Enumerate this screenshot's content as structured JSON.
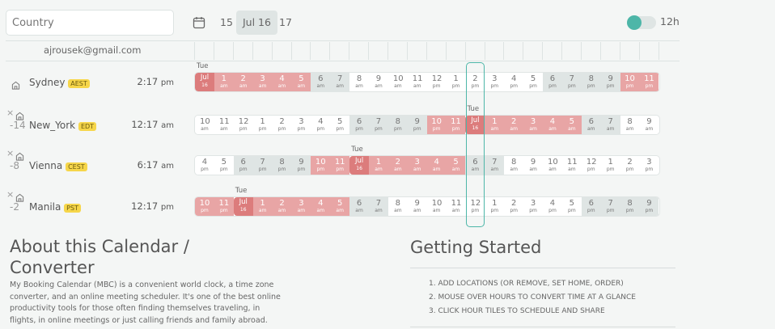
{
  "search": {
    "placeholder": "Country"
  },
  "dates": {
    "prev": "15",
    "current": "Jul 16",
    "next": "17"
  },
  "toggle": {
    "label": "12h",
    "on": true
  },
  "user": {
    "email": "ajrousek@gmail.com"
  },
  "colors": {
    "night": "#e8a5a5",
    "date": "#dc7c7c",
    "twilight": "#dfe5e4",
    "day": "#ffffff",
    "accent": "#4db6a8",
    "badge": "#f6d64a"
  },
  "highlight_column": 14,
  "locations": [
    {
      "name": "Sydney",
      "tz": "AEST",
      "offset": "",
      "time": "2:17",
      "ampm": "pm",
      "home": true,
      "day_label": "Tue",
      "cells": [
        [
          "Jul",
          "16",
          "date"
        ],
        [
          "1",
          "am",
          "night"
        ],
        [
          "2",
          "am",
          "night"
        ],
        [
          "3",
          "am",
          "night"
        ],
        [
          "4",
          "am",
          "night"
        ],
        [
          "5",
          "am",
          "night"
        ],
        [
          "6",
          "am",
          "gray"
        ],
        [
          "7",
          "am",
          "gray"
        ],
        [
          "8",
          "am",
          "day"
        ],
        [
          "9",
          "am",
          "day"
        ],
        [
          "10",
          "am",
          "day"
        ],
        [
          "11",
          "am",
          "day"
        ],
        [
          "12",
          "pm",
          "day"
        ],
        [
          "1",
          "pm",
          "day"
        ],
        [
          "2",
          "pm",
          "day"
        ],
        [
          "3",
          "pm",
          "day"
        ],
        [
          "4",
          "pm",
          "day"
        ],
        [
          "5",
          "pm",
          "day"
        ],
        [
          "6",
          "pm",
          "gray"
        ],
        [
          "7",
          "pm",
          "gray"
        ],
        [
          "8",
          "pm",
          "gray"
        ],
        [
          "9",
          "pm",
          "gray"
        ],
        [
          "10",
          "pm",
          "night"
        ],
        [
          "11",
          "pm",
          "night"
        ]
      ]
    },
    {
      "name": "New_York",
      "tz": "EDT",
      "offset": "-14",
      "time": "12:17",
      "ampm": "am",
      "home": false,
      "day_label": "Tue",
      "cells": [
        [
          "10",
          "am",
          "day"
        ],
        [
          "11",
          "am",
          "day"
        ],
        [
          "12",
          "pm",
          "day"
        ],
        [
          "1",
          "pm",
          "day"
        ],
        [
          "2",
          "pm",
          "day"
        ],
        [
          "3",
          "pm",
          "day"
        ],
        [
          "4",
          "pm",
          "day"
        ],
        [
          "5",
          "pm",
          "day"
        ],
        [
          "6",
          "pm",
          "gray"
        ],
        [
          "7",
          "pm",
          "gray"
        ],
        [
          "8",
          "pm",
          "gray"
        ],
        [
          "9",
          "pm",
          "gray"
        ],
        [
          "10",
          "pm",
          "night"
        ],
        [
          "11",
          "pm",
          "night"
        ],
        [
          "Jul",
          "16",
          "date"
        ],
        [
          "1",
          "am",
          "night"
        ],
        [
          "2",
          "am",
          "night"
        ],
        [
          "3",
          "am",
          "night"
        ],
        [
          "4",
          "am",
          "night"
        ],
        [
          "5",
          "am",
          "night"
        ],
        [
          "6",
          "am",
          "gray"
        ],
        [
          "7",
          "am",
          "gray"
        ],
        [
          "8",
          "am",
          "day"
        ],
        [
          "9",
          "am",
          "day"
        ]
      ]
    },
    {
      "name": "Vienna",
      "tz": "CEST",
      "offset": "-8",
      "time": "6:17",
      "ampm": "am",
      "home": false,
      "day_label": "Tue",
      "cells": [
        [
          "4",
          "pm",
          "day"
        ],
        [
          "5",
          "pm",
          "day"
        ],
        [
          "6",
          "pm",
          "gray"
        ],
        [
          "7",
          "pm",
          "gray"
        ],
        [
          "8",
          "pm",
          "gray"
        ],
        [
          "9",
          "pm",
          "gray"
        ],
        [
          "10",
          "pm",
          "night"
        ],
        [
          "11",
          "pm",
          "night"
        ],
        [
          "Jul",
          "16",
          "date"
        ],
        [
          "1",
          "am",
          "night"
        ],
        [
          "2",
          "am",
          "night"
        ],
        [
          "3",
          "am",
          "night"
        ],
        [
          "4",
          "am",
          "night"
        ],
        [
          "5",
          "am",
          "night"
        ],
        [
          "6",
          "am",
          "gray"
        ],
        [
          "7",
          "am",
          "gray"
        ],
        [
          "8",
          "am",
          "day"
        ],
        [
          "9",
          "am",
          "day"
        ],
        [
          "10",
          "am",
          "day"
        ],
        [
          "11",
          "am",
          "day"
        ],
        [
          "12",
          "pm",
          "day"
        ],
        [
          "1",
          "pm",
          "day"
        ],
        [
          "2",
          "pm",
          "day"
        ],
        [
          "3",
          "pm",
          "day"
        ]
      ]
    },
    {
      "name": "Manila",
      "tz": "PST",
      "offset": "-2",
      "time": "12:17",
      "ampm": "pm",
      "home": false,
      "day_label": "Tue",
      "cells": [
        [
          "10",
          "pm",
          "night"
        ],
        [
          "11",
          "pm",
          "night"
        ],
        [
          "Jul",
          "16",
          "date"
        ],
        [
          "1",
          "am",
          "night"
        ],
        [
          "2",
          "am",
          "night"
        ],
        [
          "3",
          "am",
          "night"
        ],
        [
          "4",
          "am",
          "night"
        ],
        [
          "5",
          "am",
          "night"
        ],
        [
          "6",
          "am",
          "gray"
        ],
        [
          "7",
          "am",
          "gray"
        ],
        [
          "8",
          "am",
          "day"
        ],
        [
          "9",
          "am",
          "day"
        ],
        [
          "10",
          "am",
          "day"
        ],
        [
          "11",
          "am",
          "day"
        ],
        [
          "12",
          "pm",
          "day"
        ],
        [
          "1",
          "pm",
          "day"
        ],
        [
          "2",
          "pm",
          "day"
        ],
        [
          "3",
          "pm",
          "day"
        ],
        [
          "4",
          "pm",
          "day"
        ],
        [
          "5",
          "pm",
          "day"
        ],
        [
          "6",
          "pm",
          "gray"
        ],
        [
          "7",
          "pm",
          "gray"
        ],
        [
          "8",
          "pm",
          "gray"
        ],
        [
          "9",
          "pm",
          "gray"
        ]
      ]
    }
  ],
  "about": {
    "title": "About this Calendar / Converter",
    "text": "My Booking Calendar (MBC) is a convenient world clock, a time zone converter, and an online meeting scheduler. It's one of the best online productivity tools for those often finding themselves traveling, in flights, in online meetings or just calling friends and family abroad."
  },
  "getting_started": {
    "title": "Getting Started",
    "steps": [
      "1. ADD LOCATIONS (OR REMOVE, SET HOME, ORDER)",
      "2. MOUSE OVER HOURS TO CONVERT TIME AT A GLANCE",
      "3. CLICK HOUR TILES TO SCHEDULE AND SHARE"
    ]
  }
}
